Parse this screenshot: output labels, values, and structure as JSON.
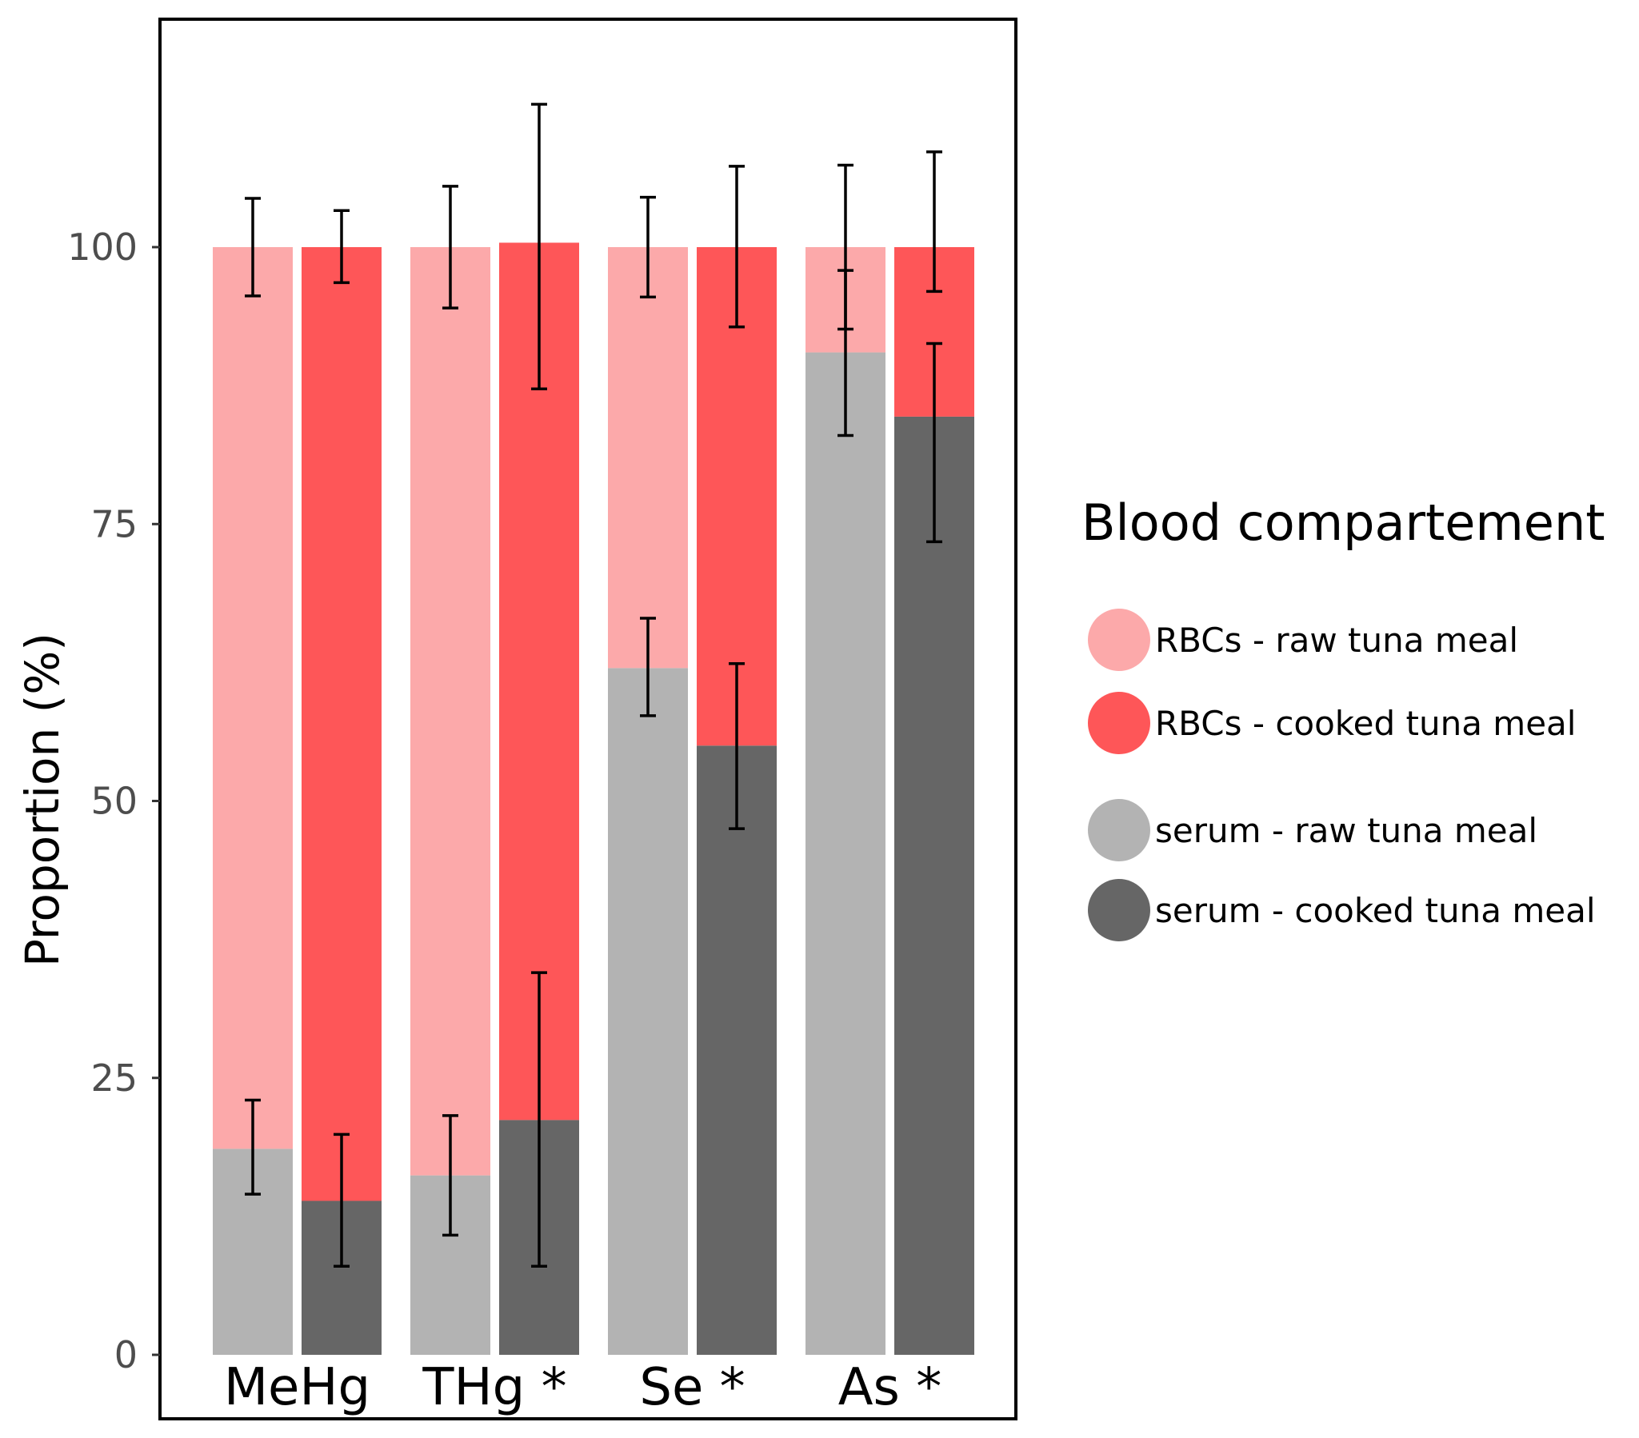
{
  "chart_data": {
    "type": "bar",
    "stacked": true,
    "ylabel": "Proportion (%)",
    "xlabel": "",
    "ylim": [
      0,
      120
    ],
    "yticks": [
      0,
      25,
      50,
      75,
      100
    ],
    "grid": false,
    "legend_position": "right",
    "categories": [
      "MeHg",
      "THg *",
      "Se *",
      "As *"
    ],
    "legend": {
      "title": "Blood compartement",
      "entries": [
        {
          "label": "RBCs - raw tuna meal",
          "color": "#fca9aa"
        },
        {
          "label": "RBCs - cooked tuna meal",
          "color": "#fe5658"
        },
        {
          "label": "serum - raw tuna meal",
          "color": "#b3b3b3"
        },
        {
          "label": "serum - cooked tuna meal",
          "color": "#666666"
        }
      ]
    },
    "bars": [
      {
        "category": "MeHg",
        "meal": "raw",
        "serum": 18.6,
        "total": 100,
        "serum_err": [
          14.5,
          23.0
        ],
        "total_err": [
          95.6,
          104.4
        ]
      },
      {
        "category": "MeHg",
        "meal": "cooked",
        "serum": 13.9,
        "total": 100,
        "serum_err": [
          8.0,
          19.9
        ],
        "total_err": [
          96.8,
          103.3
        ]
      },
      {
        "category": "THg *",
        "meal": "raw",
        "serum": 16.2,
        "total": 100,
        "serum_err": [
          10.8,
          21.6
        ],
        "total_err": [
          94.5,
          105.5
        ]
      },
      {
        "category": "THg *",
        "meal": "cooked",
        "serum": 21.2,
        "total": 100.4,
        "serum_err": [
          8.0,
          34.5
        ],
        "total_err": [
          87.2,
          112.9
        ]
      },
      {
        "category": "Se *",
        "meal": "raw",
        "serum": 62.0,
        "total": 100,
        "serum_err": [
          57.7,
          66.5
        ],
        "total_err": [
          95.5,
          104.5
        ]
      },
      {
        "category": "Se *",
        "meal": "cooked",
        "serum": 55.0,
        "total": 100,
        "serum_err": [
          47.5,
          62.4
        ],
        "total_err": [
          92.8,
          107.3
        ]
      },
      {
        "category": "As *",
        "meal": "raw",
        "serum": 90.5,
        "total": 100,
        "serum_err": [
          83.0,
          97.9
        ],
        "total_err": [
          92.6,
          107.4
        ]
      },
      {
        "category": "As *",
        "meal": "cooked",
        "serum": 84.7,
        "total": 100,
        "serum_err": [
          73.4,
          91.3
        ],
        "total_err": [
          96.0,
          108.6
        ]
      }
    ]
  }
}
